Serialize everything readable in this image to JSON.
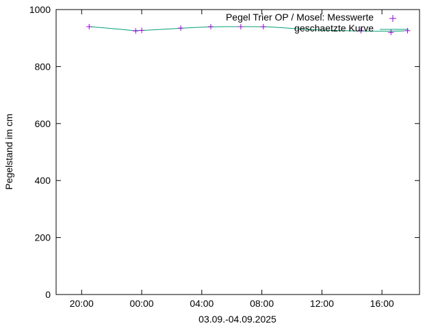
{
  "chart_data": {
    "type": "line",
    "title": "",
    "xlabel": "03.09.-04.09.2025",
    "ylabel": "Pegelstand im cm",
    "ylim": [
      0,
      1000
    ],
    "yticks": [
      0,
      200,
      400,
      600,
      800,
      1000
    ],
    "xlim_hours": [
      18.3,
      42.5
    ],
    "xticks": [
      {
        "label": "20:00",
        "hour": 20
      },
      {
        "label": "00:00",
        "hour": 24
      },
      {
        "label": "04:00",
        "hour": 28
      },
      {
        "label": "08:00",
        "hour": 32
      },
      {
        "label": "12:00",
        "hour": 36
      },
      {
        "label": "16:00",
        "hour": 40
      }
    ],
    "grid": false,
    "legend_position": "top-right",
    "series": [
      {
        "name": "Pegel Trier OP / Mosel: Messwerte",
        "style": "points",
        "marker": "+",
        "color": "#9400d3",
        "x": [
          20.5,
          23.6,
          24.0,
          26.6,
          28.6,
          30.6,
          32.1,
          38.6,
          40.6,
          41.7
        ],
        "values": [
          940,
          925,
          927,
          935,
          940,
          940,
          940,
          926,
          920,
          926
        ]
      },
      {
        "name": "geschaetzte Kurve",
        "style": "line",
        "color": "#009e73",
        "x": [
          20.5,
          21.5,
          22.5,
          23.5,
          24.5,
          25.5,
          26.5,
          27.5,
          28.5,
          29.5,
          30.5,
          31.5,
          32.5,
          33.5,
          34.5,
          35.5,
          36.5,
          37.5,
          38.5,
          39.5,
          40.5,
          41.5
        ],
        "values": [
          940,
          936,
          931,
          926,
          928,
          931,
          934,
          937,
          939,
          940,
          940,
          940,
          939,
          936,
          932,
          929,
          927,
          926,
          925,
          924,
          924,
          925
        ]
      }
    ]
  }
}
